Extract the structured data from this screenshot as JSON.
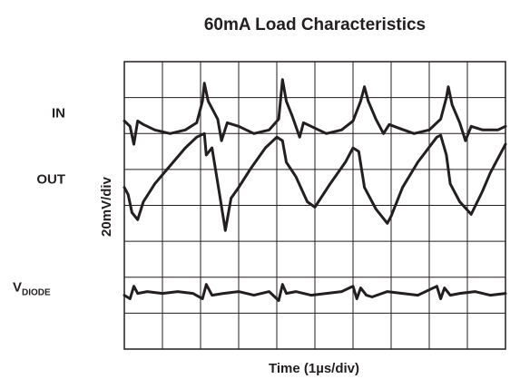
{
  "chart_data": {
    "type": "line",
    "title": "60mA Load Characteristics",
    "xlabel": "Time (1µs/div)",
    "ylabel": "20mV/div",
    "grid": true,
    "x_divisions": 10,
    "y_divisions": 8,
    "xlim": [
      0,
      10
    ],
    "ylim": [
      0,
      8
    ],
    "series": [
      {
        "name": "IN",
        "label_main": "IN",
        "label_sub": "",
        "color": "#231f20",
        "x": [
          0,
          0.15,
          0.25,
          0.35,
          0.5,
          0.8,
          1.2,
          1.6,
          1.9,
          2.05,
          2.1,
          2.2,
          2.45,
          2.55,
          2.7,
          3,
          3.4,
          3.8,
          4.05,
          4.15,
          4.25,
          4.4,
          4.6,
          4.7,
          4.9,
          5.3,
          5.7,
          6,
          6.2,
          6.3,
          6.4,
          6.6,
          6.8,
          6.95,
          7.2,
          7.6,
          8,
          8.3,
          8.45,
          8.5,
          8.6,
          8.8,
          8.95,
          9.1,
          9.4,
          9.8,
          10
        ],
        "y": [
          6.35,
          6.2,
          5.7,
          6.35,
          6.25,
          6.1,
          6.0,
          6.1,
          6.3,
          6.9,
          7.4,
          6.9,
          6.4,
          5.8,
          6.3,
          6.2,
          6.0,
          6.1,
          6.4,
          7.5,
          6.9,
          6.5,
          5.9,
          6.3,
          6.2,
          6.0,
          6.1,
          6.35,
          6.9,
          7.3,
          6.9,
          6.4,
          6.0,
          6.25,
          6.15,
          6.0,
          6.1,
          6.4,
          7.0,
          7.3,
          6.8,
          6.3,
          5.8,
          6.2,
          6.1,
          6.1,
          6.2
        ]
      },
      {
        "name": "OUT",
        "label_main": "OUT",
        "label_sub": "",
        "color": "#231f20",
        "x": [
          0,
          0.1,
          0.2,
          0.35,
          0.5,
          0.8,
          1.2,
          1.6,
          1.9,
          2.1,
          2.15,
          2.3,
          2.5,
          2.65,
          2.8,
          3.0,
          3.3,
          3.7,
          4.0,
          4.15,
          4.25,
          4.5,
          4.8,
          5.0,
          5.4,
          5.8,
          6.0,
          6.15,
          6.3,
          6.6,
          6.9,
          7.0,
          7.3,
          7.7,
          8.2,
          8.3,
          8.45,
          8.55,
          8.8,
          9.1,
          9.4,
          9.6,
          10
        ],
        "y": [
          4.5,
          4.3,
          3.8,
          3.6,
          4.1,
          4.6,
          5.1,
          5.6,
          5.9,
          6.0,
          5.4,
          5.6,
          4.3,
          3.3,
          4.2,
          4.5,
          5.0,
          5.6,
          5.9,
          5.8,
          5.2,
          4.8,
          4.1,
          3.95,
          4.6,
          5.2,
          5.6,
          5.5,
          4.5,
          3.9,
          3.5,
          3.7,
          4.5,
          5.2,
          5.9,
          5.95,
          5.4,
          4.6,
          4.1,
          3.75,
          4.4,
          4.9,
          5.7
        ]
      },
      {
        "name": "V_DIODE",
        "label_main": "V",
        "label_sub": "DIODE",
        "color": "#231f20",
        "x": [
          0,
          0.15,
          0.25,
          0.35,
          0.6,
          1.0,
          1.4,
          1.8,
          2.05,
          2.15,
          2.3,
          2.6,
          3.0,
          3.4,
          3.8,
          4.05,
          4.15,
          4.25,
          4.5,
          4.9,
          5.3,
          5.7,
          6.0,
          6.1,
          6.2,
          6.35,
          6.5,
          6.9,
          7.3,
          7.7,
          8.2,
          8.3,
          8.4,
          8.55,
          8.8,
          9.2,
          9.6,
          10
        ],
        "y": [
          1.5,
          1.4,
          1.75,
          1.55,
          1.6,
          1.55,
          1.6,
          1.55,
          1.4,
          1.8,
          1.5,
          1.55,
          1.6,
          1.5,
          1.6,
          1.35,
          1.8,
          1.55,
          1.6,
          1.5,
          1.55,
          1.6,
          1.75,
          1.4,
          1.7,
          1.5,
          1.45,
          1.6,
          1.55,
          1.5,
          1.75,
          1.4,
          1.7,
          1.5,
          1.55,
          1.6,
          1.5,
          1.55
        ]
      }
    ]
  }
}
